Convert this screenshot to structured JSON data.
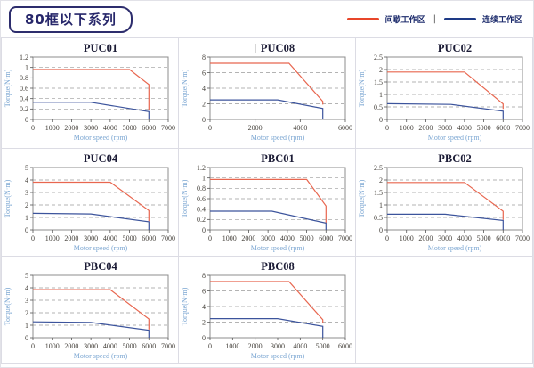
{
  "header": {
    "series_title": "80框以下系列",
    "legend": {
      "items": [
        {
          "label": "间歇工作区",
          "color": "#e8462a"
        },
        {
          "label": "连续工作区",
          "color": "#1e3a86"
        }
      ],
      "separator": "|"
    }
  },
  "chart_data": [
    {
      "type": "line",
      "title": "PUC01",
      "xlabel": "Motor speed (rpm)",
      "ylabel": "Torque(N·m)",
      "xlim": [
        0,
        7000
      ],
      "ylim": [
        0,
        1.2
      ],
      "xticks": [
        0,
        1000,
        2000,
        3000,
        4000,
        5000,
        6000,
        7000
      ],
      "yticks": [
        0,
        0.2,
        0.4,
        0.6,
        0.8,
        1,
        1.2
      ],
      "grid": "dashed-horizontal",
      "legend_position": "none",
      "series": [
        {
          "name": "间歇工作区",
          "color": "#e8664f",
          "points": [
            [
              0,
              0.96
            ],
            [
              5000,
              0.96
            ],
            [
              6000,
              0.67
            ],
            [
              6000,
              0.18
            ]
          ]
        },
        {
          "name": "连续工作区",
          "color": "#3c549c",
          "points": [
            [
              0,
              0.33
            ],
            [
              3000,
              0.33
            ],
            [
              6000,
              0.15
            ],
            [
              6000,
              0
            ]
          ]
        }
      ]
    },
    {
      "type": "line",
      "title": "PUC08",
      "caret": true,
      "xlabel": "Motor speed (rpm)",
      "ylabel": "Torque(N·m)",
      "xlim": [
        0,
        6000
      ],
      "ylim": [
        0,
        8
      ],
      "xticks": [
        0,
        2000,
        4000,
        6000
      ],
      "yticks": [
        0,
        2,
        4,
        6,
        8
      ],
      "grid": "dashed-horizontal",
      "legend_position": "none",
      "series": [
        {
          "name": "间歇工作区",
          "color": "#e8664f",
          "points": [
            [
              0,
              7.2
            ],
            [
              3500,
              7.2
            ],
            [
              5000,
              2.3
            ],
            [
              5000,
              1.9
            ]
          ]
        },
        {
          "name": "连续工作区",
          "color": "#3c549c",
          "points": [
            [
              0,
              2.5
            ],
            [
              3000,
              2.5
            ],
            [
              5000,
              1.4
            ],
            [
              5000,
              0
            ]
          ]
        }
      ]
    },
    {
      "type": "line",
      "title": "PUC02",
      "xlabel": "Motor speed (rpm)",
      "ylabel": "Torque(N·m)",
      "xlim": [
        0,
        7000
      ],
      "ylim": [
        0,
        2.5
      ],
      "xticks": [
        0,
        1000,
        2000,
        3000,
        4000,
        5000,
        6000,
        7000
      ],
      "yticks": [
        0,
        0.5,
        1,
        1.5,
        2,
        2.5
      ],
      "grid": "dashed-horizontal",
      "legend_position": "none",
      "series": [
        {
          "name": "间歇工作区",
          "color": "#e8664f",
          "points": [
            [
              0,
              1.9
            ],
            [
              4000,
              1.9
            ],
            [
              6000,
              0.62
            ],
            [
              6000,
              0.42
            ]
          ]
        },
        {
          "name": "连续工作区",
          "color": "#3c549c",
          "points": [
            [
              0,
              0.63
            ],
            [
              3300,
              0.6
            ],
            [
              6000,
              0.33
            ],
            [
              6000,
              0
            ]
          ]
        }
      ]
    },
    {
      "type": "line",
      "title": "PUC04",
      "xlabel": "Motor speed (rpm)",
      "ylabel": "Torque(N·m)",
      "xlim": [
        0,
        7000
      ],
      "ylim": [
        0,
        5
      ],
      "xticks": [
        0,
        1000,
        2000,
        3000,
        4000,
        5000,
        6000,
        7000
      ],
      "yticks": [
        0,
        1,
        2,
        3,
        4,
        5
      ],
      "grid": "dashed-horizontal",
      "legend_position": "none",
      "series": [
        {
          "name": "间歇工作区",
          "color": "#e8664f",
          "points": [
            [
              0,
              3.82
            ],
            [
              4000,
              3.82
            ],
            [
              6000,
              1.55
            ],
            [
              6000,
              0.7
            ]
          ]
        },
        {
          "name": "连续工作区",
          "color": "#3c549c",
          "points": [
            [
              0,
              1.33
            ],
            [
              3000,
              1.28
            ],
            [
              6000,
              0.65
            ],
            [
              6000,
              0
            ]
          ]
        }
      ]
    },
    {
      "type": "line",
      "title": "PBC01",
      "xlabel": "Motor speed (rpm)",
      "ylabel": "Torque(N·m)",
      "xlim": [
        0,
        7000
      ],
      "ylim": [
        0,
        1.2
      ],
      "xticks": [
        0,
        1000,
        2000,
        3000,
        4000,
        5000,
        6000,
        7000
      ],
      "yticks": [
        0,
        0.2,
        0.4,
        0.6,
        0.8,
        1,
        1.2
      ],
      "grid": "dashed-horizontal",
      "legend_position": "none",
      "series": [
        {
          "name": "间歇工作区",
          "color": "#e8664f",
          "points": [
            [
              0,
              0.97
            ],
            [
              5000,
              0.97
            ],
            [
              6000,
              0.46
            ],
            [
              6000,
              0.13
            ]
          ]
        },
        {
          "name": "连续工作区",
          "color": "#3c549c",
          "points": [
            [
              0,
              0.36
            ],
            [
              3200,
              0.36
            ],
            [
              6000,
              0.13
            ],
            [
              6000,
              0
            ]
          ]
        }
      ]
    },
    {
      "type": "line",
      "title": "PBC02",
      "xlabel": "Motor speed (rpm)",
      "ylabel": "Torque(N·m)",
      "xlim": [
        0,
        7000
      ],
      "ylim": [
        0,
        2.5
      ],
      "xticks": [
        0,
        1000,
        2000,
        3000,
        4000,
        5000,
        6000,
        7000
      ],
      "yticks": [
        0,
        0.5,
        1,
        1.5,
        2,
        2.5
      ],
      "grid": "dashed-horizontal",
      "legend_position": "none",
      "series": [
        {
          "name": "间歇工作区",
          "color": "#e8664f",
          "points": [
            [
              0,
              1.9
            ],
            [
              4000,
              1.9
            ],
            [
              6000,
              0.75
            ],
            [
              6000,
              0.4
            ]
          ]
        },
        {
          "name": "连续工作区",
          "color": "#3c549c",
          "points": [
            [
              0,
              0.63
            ],
            [
              3000,
              0.63
            ],
            [
              6000,
              0.38
            ],
            [
              6000,
              0
            ]
          ]
        }
      ]
    },
    {
      "type": "line",
      "title": "PBC04",
      "xlabel": "Motor speed (rpm)",
      "ylabel": "Torque(N·m)",
      "xlim": [
        0,
        7000
      ],
      "ylim": [
        0,
        5
      ],
      "xticks": [
        0,
        1000,
        2000,
        3000,
        4000,
        5000,
        6000,
        7000
      ],
      "yticks": [
        0,
        1,
        2,
        3,
        4,
        5
      ],
      "grid": "dashed-horizontal",
      "legend_position": "none",
      "series": [
        {
          "name": "间歇工作区",
          "color": "#e8664f",
          "points": [
            [
              0,
              3.85
            ],
            [
              4000,
              3.85
            ],
            [
              6000,
              1.5
            ],
            [
              6000,
              0.65
            ]
          ]
        },
        {
          "name": "连续工作区",
          "color": "#3c549c",
          "points": [
            [
              0,
              1.27
            ],
            [
              3000,
              1.22
            ],
            [
              6000,
              0.6
            ],
            [
              6000,
              0
            ]
          ]
        }
      ]
    },
    {
      "type": "line",
      "title": "PBC08",
      "xlabel": "Motor speed (rpm)",
      "ylabel": "Torque(N·m)",
      "xlim": [
        0,
        6000
      ],
      "ylim": [
        0,
        8
      ],
      "xticks": [
        0,
        1000,
        2000,
        3000,
        4000,
        5000,
        6000
      ],
      "yticks": [
        0,
        2,
        4,
        6,
        8
      ],
      "grid": "dashed-horizontal",
      "legend_position": "none",
      "series": [
        {
          "name": "间歇工作区",
          "color": "#e8664f",
          "points": [
            [
              0,
              7.2
            ],
            [
              3500,
              7.2
            ],
            [
              5000,
              2.3
            ],
            [
              5000,
              1.9
            ]
          ]
        },
        {
          "name": "连续工作区",
          "color": "#3c549c",
          "points": [
            [
              0,
              2.45
            ],
            [
              3000,
              2.45
            ],
            [
              5000,
              1.45
            ],
            [
              5000,
              0
            ]
          ]
        }
      ]
    }
  ]
}
